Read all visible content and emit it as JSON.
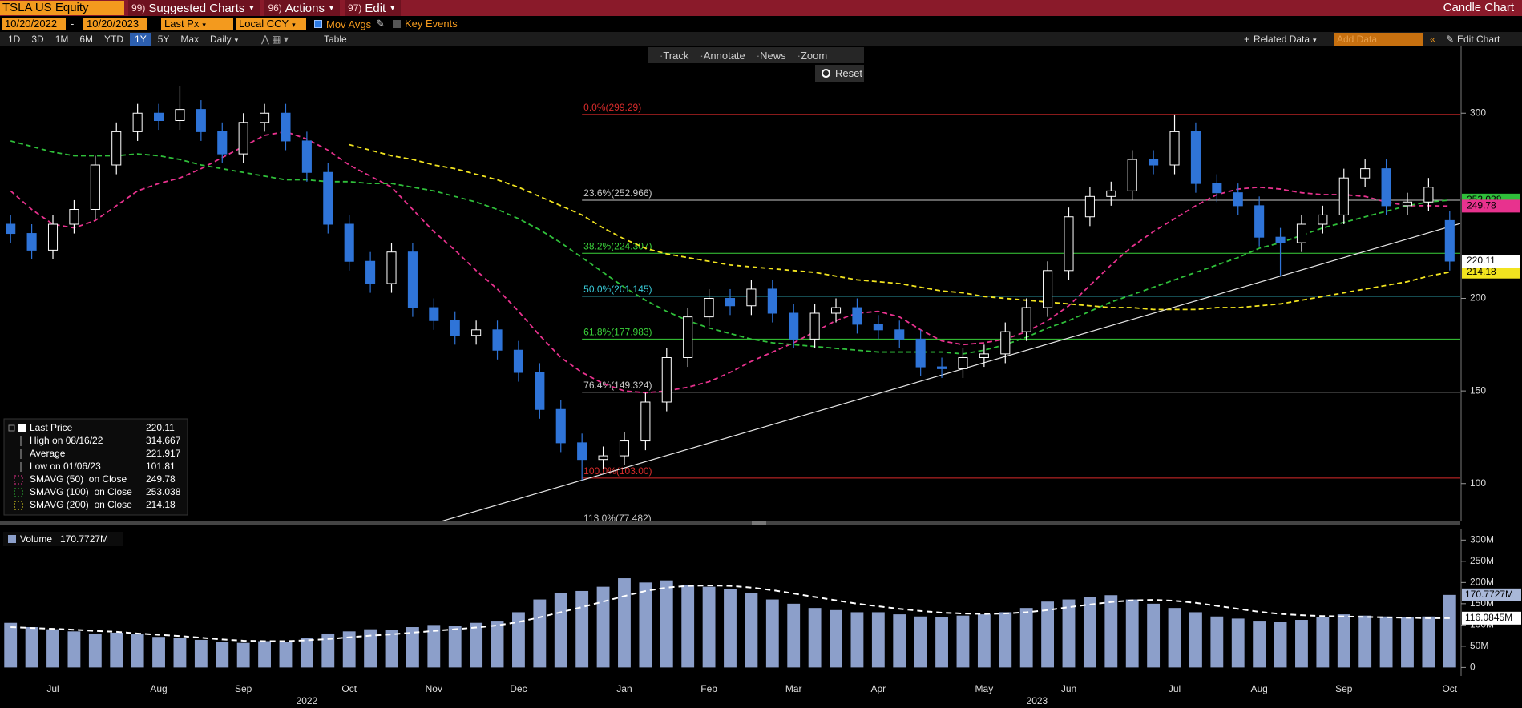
{
  "toolbar": {
    "security": "TSLA US Equity",
    "menus": [
      {
        "code": "99)",
        "label": "Suggested Charts"
      },
      {
        "code": "96)",
        "label": "Actions"
      },
      {
        "code": "97)",
        "label": "Edit"
      }
    ],
    "view_name": "Candle Chart",
    "start_date": "10/20/2022",
    "date_separator": "-",
    "end_date": "10/20/2023",
    "field": "Last Px",
    "currency": "Local CCY",
    "options": [
      "Mov Avgs",
      "Key Events"
    ],
    "periods": [
      "1D",
      "3D",
      "1M",
      "6M",
      "YTD",
      "1Y",
      "5Y",
      "Max"
    ],
    "selected_period": "1Y",
    "frequency": "Daily",
    "table": "Table",
    "related_data": "Related Data",
    "add_data": "Add Data",
    "edit_chart": "Edit Chart",
    "tools": [
      "Track",
      "Annotate",
      "News",
      "Zoom"
    ],
    "reset": "Reset"
  },
  "chart_data": [
    {
      "type": "candlestick",
      "categories": [
        null,
        null,
        "Jul",
        null,
        null,
        null,
        null,
        "Aug",
        null,
        null,
        null,
        "Sep",
        null,
        null,
        null,
        null,
        "Oct",
        null,
        null,
        null,
        "Nov",
        null,
        null,
        null,
        "Dec",
        null,
        null,
        null,
        null,
        "Jan",
        null,
        null,
        null,
        "Feb",
        null,
        null,
        null,
        "Mar",
        null,
        null,
        null,
        "Apr",
        null,
        null,
        null,
        null,
        "May",
        null,
        null,
        null,
        "Jun",
        null,
        null,
        null,
        null,
        "Jul",
        null,
        null,
        null,
        "Aug",
        null,
        null,
        null,
        "Sep",
        null,
        null,
        null,
        null,
        "Oct"
      ],
      "years": [
        {
          "label": "2022",
          "span": [
            0,
            28
          ]
        },
        {
          "label": "2023",
          "span": [
            29,
            68
          ]
        }
      ],
      "open": [
        240,
        235,
        226,
        240,
        248,
        272,
        290,
        300,
        296,
        302,
        290,
        278,
        295,
        300,
        285,
        268,
        240,
        220,
        208,
        225,
        195,
        188,
        180,
        183,
        172,
        160,
        140,
        122,
        113,
        115,
        123,
        144,
        168,
        190,
        200,
        196,
        205,
        192,
        178,
        192,
        195,
        186,
        183,
        178,
        163,
        162,
        168,
        170,
        182,
        195,
        215,
        244,
        255,
        258,
        275,
        272,
        290,
        262,
        257,
        250,
        233,
        230,
        240,
        245,
        265,
        270,
        250,
        252,
        242
      ],
      "high": [
        245,
        240,
        245,
        253,
        277,
        295,
        305,
        305,
        314.667,
        307,
        295,
        300,
        305,
        305,
        290,
        273,
        245,
        225,
        230,
        230,
        200,
        193,
        188,
        188,
        177,
        165,
        145,
        127,
        120,
        128,
        149,
        173,
        195,
        205,
        205,
        210,
        210,
        197,
        197,
        200,
        200,
        191,
        188,
        183,
        168,
        173,
        175,
        187,
        200,
        220,
        249,
        260,
        263,
        280,
        280,
        299.29,
        295,
        267,
        262,
        255,
        238,
        245,
        250,
        270,
        275,
        275,
        257,
        265,
        247
      ],
      "low": [
        230,
        221,
        221,
        235,
        243,
        267,
        285,
        291,
        291,
        285,
        273,
        273,
        290,
        280,
        263,
        235,
        215,
        203,
        203,
        190,
        183,
        175,
        175,
        167,
        155,
        135,
        117,
        101.81,
        108,
        110,
        118,
        139,
        163,
        185,
        191,
        191,
        187,
        173,
        173,
        187,
        181,
        178,
        173,
        158,
        157,
        157,
        163,
        165,
        177,
        190,
        210,
        239,
        250,
        253,
        267,
        267,
        257,
        252,
        245,
        228,
        212,
        225,
        235,
        240,
        260,
        245,
        245,
        247,
        215
      ],
      "close": [
        235,
        226,
        240,
        248,
        272,
        290,
        300,
        296,
        302,
        290,
        278,
        295,
        300,
        285,
        268,
        240,
        220,
        208,
        225,
        195,
        188,
        180,
        183,
        172,
        160,
        140,
        122,
        113,
        115,
        123,
        144,
        168,
        190,
        200,
        196,
        205,
        192,
        178,
        192,
        195,
        186,
        183,
        178,
        163,
        162,
        168,
        170,
        182,
        195,
        215,
        244,
        255,
        258,
        275,
        272,
        290,
        262,
        257,
        250,
        233,
        230,
        240,
        245,
        265,
        270,
        250,
        252,
        260,
        220.11
      ],
      "up_color": "#ffffff",
      "down_color": "#2f74d8",
      "line_style": "dashed",
      "series": [
        {
          "name": "SMAVG (50)  on Close",
          "color": "#e8328e",
          "values": [
            258,
            248,
            240,
            238,
            242,
            250,
            258,
            262,
            265,
            270,
            276,
            282,
            288,
            290,
            286,
            280,
            272,
            266,
            260,
            248,
            236,
            226,
            215,
            205,
            193,
            180,
            168,
            160,
            154,
            150,
            149,
            150,
            152,
            155,
            160,
            166,
            171,
            176,
            182,
            188,
            192,
            193,
            190,
            183,
            177,
            175,
            176,
            178,
            182,
            188,
            196,
            207,
            218,
            228,
            236,
            243,
            250,
            256,
            259,
            260,
            259,
            257,
            256,
            256,
            255,
            252,
            250,
            250,
            249.78
          ]
        },
        {
          "name": "SMAVG (100)  on Close",
          "color": "#2fbf3a",
          "values": [
            285,
            282,
            279,
            277,
            277,
            277,
            278,
            277,
            275,
            272,
            270,
            268,
            266,
            264,
            264,
            263,
            263,
            262,
            262,
            260,
            258,
            255,
            252,
            248,
            243,
            237,
            230,
            222,
            214,
            206,
            199,
            193,
            188,
            184,
            181,
            178,
            176,
            175,
            174,
            173,
            172,
            171,
            171,
            171,
            171,
            170,
            172,
            175,
            179,
            184,
            188,
            193,
            198,
            202,
            206,
            210,
            214,
            218,
            222,
            227,
            230,
            234,
            238,
            241,
            244,
            247,
            250,
            252,
            253.038
          ]
        },
        {
          "name": "SMAVG (200)  on Close",
          "color": "#f2e41f",
          "values": [
            null,
            null,
            null,
            null,
            null,
            null,
            null,
            null,
            null,
            null,
            null,
            null,
            null,
            null,
            null,
            null,
            283,
            280,
            277,
            275,
            272,
            270,
            267,
            264,
            260,
            255,
            250,
            245,
            238,
            232,
            227,
            224,
            222,
            220,
            218,
            217,
            216,
            215,
            214,
            212,
            210,
            209,
            208,
            206,
            204,
            203,
            201,
            200,
            199,
            198,
            197,
            196,
            195,
            195,
            194,
            194,
            194,
            195,
            195,
            196,
            197,
            199,
            201,
            203,
            205,
            207,
            209,
            212,
            214.18
          ]
        }
      ],
      "fib_levels": [
        {
          "label": "0.0%(299.29)",
          "value": 299.29,
          "color": "#d92b2b"
        },
        {
          "label": "23.6%(252.966)",
          "value": 252.966,
          "color": "#c8c8c8"
        },
        {
          "label": "38.2%(224.307)",
          "value": 224.307,
          "color": "#3ad13a"
        },
        {
          "label": "50.0%(201.145)",
          "value": 201.145,
          "color": "#38c9d6"
        },
        {
          "label": "61.8%(177.983)",
          "value": 177.983,
          "color": "#3ad13a"
        },
        {
          "label": "76.4%(149.324)",
          "value": 149.324,
          "color": "#c8c8c8"
        },
        {
          "label": "100.0%(103.00)",
          "value": 103.0,
          "color": "#d92b2b"
        },
        {
          "label": "113.0%(77.482)",
          "value": 77.482,
          "color": "#c8c8c8"
        }
      ],
      "trendline": {
        "points": [
          [
            27,
            101.81
          ],
          [
            60,
            212
          ]
        ],
        "color": "#e6e6e6"
      },
      "legend_box": [
        {
          "label": "Last Price",
          "value": 220.11
        },
        {
          "label": "High on 08/16/22",
          "value": 314.667
        },
        {
          "label": "Average",
          "value": 221.917
        },
        {
          "label": "Low on 01/06/23",
          "value": 101.81
        }
      ],
      "ylim": [
        80,
        336
      ],
      "yticks": [
        100,
        150,
        200,
        300
      ],
      "grid": false
    },
    {
      "type": "bar",
      "series": [
        {
          "name": "Volume",
          "color": "#8c9fca",
          "end_label": "170.7727M",
          "values": [
            105,
            95,
            90,
            85,
            80,
            82,
            78,
            72,
            70,
            65,
            60,
            58,
            62,
            60,
            70,
            80,
            85,
            90,
            88,
            95,
            100,
            98,
            105,
            110,
            130,
            160,
            175,
            180,
            190,
            210,
            200,
            205,
            195,
            190,
            185,
            175,
            160,
            150,
            140,
            135,
            130,
            130,
            125,
            120,
            118,
            122,
            125,
            130,
            140,
            155,
            160,
            165,
            170,
            160,
            150,
            140,
            130,
            120,
            115,
            110,
            108,
            112,
            118,
            125,
            122,
            120,
            118,
            120,
            170.7727
          ]
        },
        {
          "color": "#ffffff",
          "end_label": "116.0845M",
          "values": [
            95,
            93,
            91,
            89,
            86,
            84,
            80,
            77,
            74,
            70,
            66,
            63,
            62,
            62,
            64,
            67,
            71,
            75,
            78,
            82,
            86,
            90,
            94,
            99,
            107,
            118,
            130,
            142,
            155,
            168,
            180,
            188,
            192,
            193,
            192,
            188,
            182,
            174,
            166,
            158,
            150,
            144,
            138,
            133,
            129,
            127,
            126,
            127,
            130,
            135,
            142,
            148,
            154,
            158,
            159,
            157,
            152,
            145,
            138,
            131,
            126,
            123,
            121,
            120,
            119,
            118,
            117,
            116,
            116.0845
          ]
        }
      ],
      "ylim": [
        -20,
        327
      ],
      "yticks": [
        0,
        {
          "value": 50,
          "label": "50M"
        },
        {
          "value": 100,
          "label": "100M"
        },
        {
          "value": 150,
          "label": "150M"
        },
        {
          "value": 200,
          "label": "200M"
        },
        {
          "value": 250,
          "label": "250M"
        },
        {
          "value": 300,
          "label": "300M"
        }
      ],
      "grid": false
    }
  ]
}
